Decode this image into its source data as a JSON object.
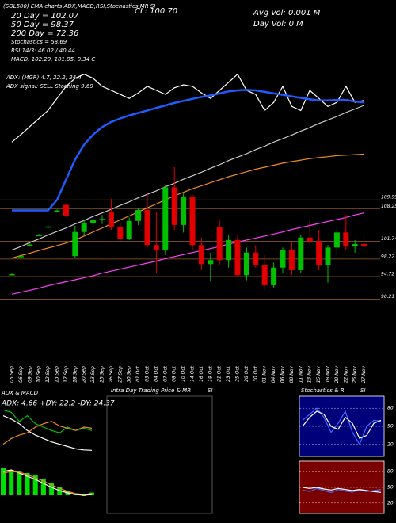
{
  "header": {
    "info": "(SOL500) EMA charts ADX,MACD,RSI,Stochastics,MR SI",
    "close": "CL: 100.70",
    "avg_vol": "Avg Vol: 0.001 M",
    "day_vol": "Day Vol: 0  M"
  },
  "chart_data": [
    {
      "type": "candlestick",
      "legend_text": [
        "20 Day = 102.07",
        "50 Day = 98.37",
        "200 Day = 72.36",
        "Stochastics = 58.69",
        "RSI 14/3: 46.02 / 40.44",
        "MACD: 102.29, 101.95, 0.34 C",
        "ADX:                (MGR) 4.7, 22.2, 24.4",
        "ADX  signal: SELL Stoching 9.69"
      ],
      "categories": [
        "05 Sep",
        "06 Sep",
        "09 Sep",
        "10 Sep",
        "12 Sep",
        "13 Sep",
        "17 Sep",
        "18 Sep",
        "20 Sep",
        "23 Sep",
        "25 Sep",
        "26 Sep",
        "27 Sep",
        "30 Sep",
        "01 Oct",
        "03 Oct",
        "04 Oct",
        "07 Oct",
        "08 Oct",
        "10 Oct",
        "14 Oct",
        "16 Oct",
        "18 Oct",
        "21 Oct",
        "23 Oct",
        "25 Oct",
        "28 Oct",
        "30 Oct",
        "01 Nov",
        "04 Nov",
        "06 Nov",
        "08 Nov",
        "11 Nov",
        "13 Nov",
        "15 Nov",
        "18 Nov",
        "20 Nov",
        "22 Nov",
        "25 Nov",
        "27 Nov"
      ],
      "ohlc": [
        [
          95.2,
          95.4,
          95.0,
          95.2
        ],
        [
          98.8,
          99.0,
          98.6,
          98.8
        ],
        [
          101.1,
          101.3,
          100.9,
          101.1
        ],
        [
          103.0,
          103.2,
          102.8,
          103.0
        ],
        [
          104.7,
          104.9,
          104.5,
          104.7
        ],
        [
          107.9,
          108.1,
          107.7,
          107.9
        ],
        [
          109.0,
          109.2,
          106.6,
          106.8
        ],
        [
          98.8,
          104.8,
          98.5,
          103.6
        ],
        [
          103.6,
          106.0,
          103.0,
          105.4
        ],
        [
          105.4,
          106.5,
          104.8,
          106.0
        ],
        [
          106.0,
          107.0,
          105.2,
          106.2
        ],
        [
          107.5,
          110.2,
          104.0,
          104.5
        ],
        [
          104.5,
          105.5,
          101.8,
          102.2
        ],
        [
          102.2,
          106.5,
          102.0,
          105.8
        ],
        [
          105.8,
          108.4,
          105.0,
          108.0
        ],
        [
          108.0,
          111.2,
          100.5,
          101.0
        ],
        [
          101.0,
          107.5,
          95.5,
          100.0
        ],
        [
          100.0,
          113.0,
          99.0,
          112.5
        ],
        [
          112.5,
          116.5,
          104.0,
          105.0
        ],
        [
          105.0,
          111.5,
          103.5,
          110.5
        ],
        [
          110.5,
          111.0,
          100.0,
          101.0
        ],
        [
          101.0,
          102.5,
          96.0,
          97.2
        ],
        [
          97.2,
          99.5,
          93.8,
          98.0
        ],
        [
          104.5,
          106.0,
          97.0,
          98.0
        ],
        [
          98.0,
          103.0,
          96.5,
          102.0
        ],
        [
          102.0,
          103.0,
          94.5,
          95.0
        ],
        [
          95.0,
          100.5,
          94.0,
          99.5
        ],
        [
          99.5,
          101.0,
          96.5,
          97.0
        ],
        [
          97.0,
          99.0,
          92.0,
          93.0
        ],
        [
          93.0,
          97.5,
          92.5,
          96.5
        ],
        [
          96.5,
          100.5,
          95.5,
          100.0
        ],
        [
          100.0,
          101.5,
          95.0,
          96.0
        ],
        [
          96.0,
          103.0,
          95.5,
          102.5
        ],
        [
          102.5,
          106.0,
          101.0,
          101.8
        ],
        [
          101.8,
          104.0,
          96.0,
          97.0
        ],
        [
          97.0,
          101.0,
          93.5,
          100.5
        ],
        [
          100.5,
          104.5,
          99.0,
          103.5
        ],
        [
          103.5,
          107.0,
          100.0,
          100.7
        ],
        [
          100.7,
          102.0,
          99.5,
          101.2
        ],
        [
          101.2,
          103.0,
          100.2,
          100.7
        ]
      ],
      "up_color": "#00c000",
      "down_color": "#e00000",
      "series": [
        {
          "color": "#ffffff",
          "values": [
            121.5,
            123.0,
            124.6,
            126.2,
            127.8,
            130.2,
            132.6,
            134.2,
            135.0,
            134.2,
            132.6,
            131.8,
            131.0,
            130.2,
            131.3,
            132.6,
            131.8,
            131.0,
            132.3,
            132.9,
            132.6,
            131.3,
            130.2,
            131.8,
            133.4,
            135.0,
            131.8,
            131.0,
            127.8,
            129.4,
            132.6,
            128.6,
            127.8,
            131.8,
            130.2,
            128.6,
            129.4,
            132.6,
            129.4,
            129.8
          ]
        },
        {
          "color": "#1e5cff",
          "values": [
            107.9,
            107.9,
            107.9,
            107.9,
            107.9,
            110,
            114,
            118,
            121,
            123,
            124.5,
            125.5,
            126.2,
            126.8,
            127.3,
            127.8,
            128.3,
            128.8,
            129.3,
            129.7,
            130.1,
            130.5,
            130.8,
            131.2,
            131.6,
            131.8,
            131.9,
            131.8,
            131.5,
            131.2,
            130.9,
            130.6,
            130.3,
            130.0,
            129.8,
            129.8,
            129.9,
            129.9,
            129.6,
            129.4
          ]
        },
        {
          "color": "#c8c8c8",
          "values": [
            100,
            100.7,
            101.5,
            102.2,
            103,
            103.7,
            104.4,
            105.2,
            105.9,
            106.7,
            107.4,
            108.1,
            108.9,
            109.6,
            110.4,
            111.1,
            111.8,
            112.6,
            113.3,
            114.1,
            114.8,
            115.5,
            116.3,
            117,
            117.8,
            118.5,
            119.2,
            120,
            120.7,
            121.5,
            122.2,
            122.9,
            123.7,
            124.4,
            125.2,
            125.9,
            126.6,
            127.4,
            128.1,
            128.8
          ]
        },
        {
          "color": "#f08c1e",
          "values": [
            98.4,
            98.9,
            99.4,
            99.9,
            100.4,
            100.9,
            101.4,
            102.0,
            102.8,
            103.6,
            104.4,
            105.2,
            106.0,
            106.8,
            107.6,
            108.4,
            109.2,
            110.0,
            110.8,
            111.5,
            112.2,
            112.8,
            113.4,
            114.0,
            114.6,
            115.1,
            115.6,
            116.1,
            116.5,
            116.9,
            117.3,
            117.6,
            117.9,
            118.2,
            118.4,
            118.6,
            118.8,
            118.9,
            119.0,
            119.1
          ]
        },
        {
          "color": "#ff40ff",
          "values": [
            91.2,
            91.6,
            92.0,
            92.4,
            92.9,
            93.3,
            93.7,
            94.1,
            94.5,
            94.9,
            95.4,
            95.8,
            96.2,
            96.6,
            97.0,
            97.4,
            97.8,
            98.3,
            98.7,
            99.1,
            99.5,
            99.9,
            100.3,
            100.7,
            101.2,
            101.6,
            102.0,
            102.4,
            102.8,
            103.2,
            103.6,
            104.1,
            104.5,
            104.9,
            105.3,
            105.7,
            106.1,
            106.5,
            107.0,
            107.4
          ]
        }
      ],
      "levels": [
        109.99,
        108.25,
        101.74,
        98.22,
        94.72,
        90.21
      ],
      "level_color": "#a0602a",
      "ylim": [
        78,
        149
      ]
    },
    {
      "type": "line",
      "title": "ADX  & MACD",
      "subtitle": "ADX: 4.66 +DY: 22.2 -DY: 24.37",
      "ylim": [
        0,
        50
      ],
      "series": [
        {
          "color": "#00c000",
          "values": [
            40,
            38,
            30,
            35,
            28,
            25,
            22,
            20,
            25,
            22,
            24,
            22
          ]
        },
        {
          "color": "#f08c1e",
          "values": [
            10,
            15,
            18,
            20,
            25,
            28,
            30,
            26,
            24,
            22,
            25,
            24
          ]
        },
        {
          "color": "#ffffff",
          "values": [
            35,
            32,
            28,
            22,
            18,
            15,
            12,
            10,
            8,
            6,
            5,
            4.66
          ]
        }
      ]
    },
    {
      "type": "combo",
      "ylim": [
        -2,
        4
      ],
      "bar_color": "#00e000",
      "values": [
        3.5,
        3.2,
        3,
        2.8,
        2.5,
        2,
        1.5,
        1,
        0.5,
        0.2,
        -0.1,
        0.34
      ],
      "series": [
        {
          "color": "#ffffff",
          "values": [
            3,
            3.2,
            2.8,
            2.4,
            2,
            1.5,
            1,
            0.6,
            0.3,
            0.1,
            0,
            0.1
          ]
        },
        {
          "color": "#f08c1e",
          "values": [
            2.8,
            3,
            2.9,
            2.6,
            2.2,
            1.8,
            1.3,
            0.9,
            0.5,
            0.2,
            0.1,
            0.2
          ]
        }
      ]
    },
    {
      "type": "empty",
      "title": "Intra Day Trading Price & MR",
      "title_right": "SI"
    },
    {
      "type": "line",
      "title": "Stochastics & R",
      "title_right": "SI",
      "ylim": [
        0,
        100
      ],
      "yticks": [
        20,
        50,
        80
      ],
      "background": "#00007a",
      "series": [
        {
          "color": "#3c6cff",
          "values": [
            60,
            70,
            80,
            65,
            40,
            55,
            75,
            40,
            20,
            50,
            60,
            58.69
          ]
        },
        {
          "color": "#ffffff",
          "values": [
            50,
            65,
            75,
            70,
            50,
            45,
            65,
            55,
            30,
            35,
            55,
            60
          ]
        }
      ]
    },
    {
      "type": "line",
      "ylim": [
        0,
        100
      ],
      "yticks": [
        20,
        50,
        80
      ],
      "background": "#7a0000",
      "series": [
        {
          "color": "#3c6cff",
          "values": [
            45,
            42,
            48,
            44,
            40,
            46,
            43,
            41,
            45,
            42,
            44,
            46.02
          ]
        },
        {
          "color": "#ffffff",
          "values": [
            50,
            48,
            50,
            47,
            45,
            48,
            46,
            44,
            46,
            44,
            42,
            40.44
          ]
        }
      ]
    }
  ]
}
